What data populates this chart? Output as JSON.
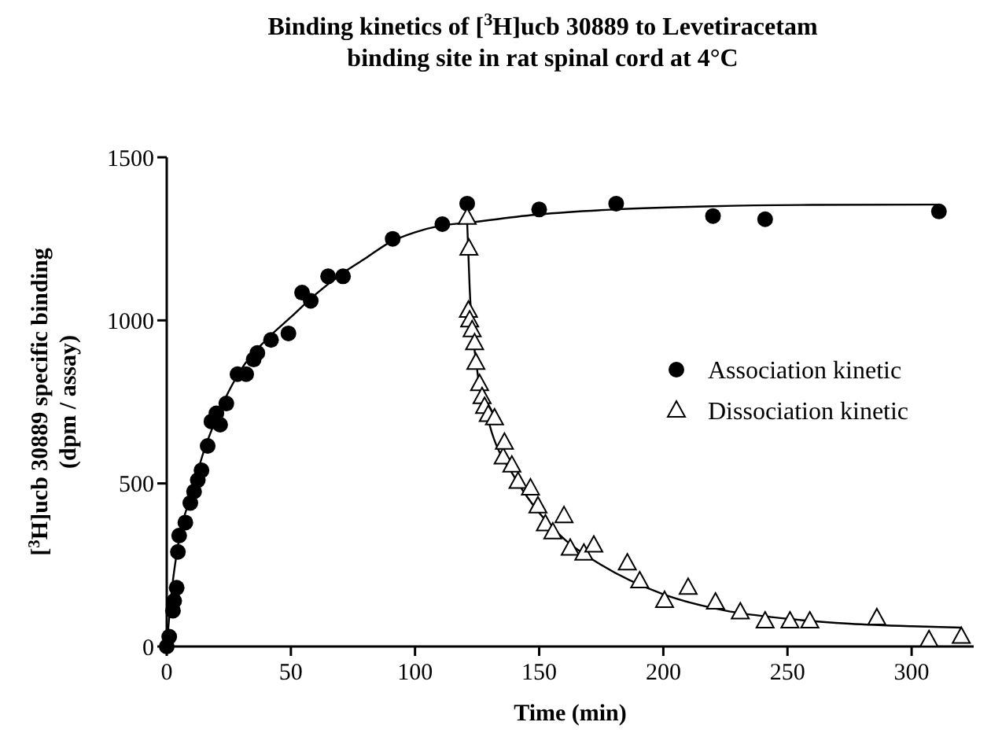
{
  "chart_data": {
    "type": "scatter",
    "title": "Binding kinetics of [$^{3}$H]ucb 30889 to Levetiracetam binding site in rat spinal cord at 4°C",
    "xlabel": "Time (min)",
    "ylabel": "[$^{3}$H]ucb 30889 specific binding (dpm / assay)",
    "xlim": [
      0,
      325
    ],
    "xticks": [
      0,
      50,
      100,
      150,
      200,
      250,
      300
    ],
    "ylim": [
      0,
      1500
    ],
    "yticks": [
      0,
      500,
      1000,
      1500
    ],
    "grid": false,
    "legend": "right",
    "line_style": "solid",
    "series": [
      {
        "name": "Association kinetic",
        "color": "#000000",
        "marker": "circle",
        "x": [
          0,
          1,
          2.5,
          3,
          4,
          4.5,
          5,
          7.5,
          9.5,
          11,
          12.5,
          14,
          16.5,
          18,
          20,
          21.5,
          24,
          28.5,
          32,
          35,
          36.5,
          42,
          49,
          54.5,
          58,
          65,
          71,
          91,
          111,
          121,
          150,
          181,
          220,
          241,
          311
        ],
        "values": [
          0,
          30,
          110,
          140,
          180,
          290,
          340,
          380,
          440,
          475,
          510,
          540,
          615,
          690,
          715,
          680,
          745,
          835,
          835,
          880,
          900,
          940,
          960,
          1085,
          1060,
          1135,
          1135,
          1250,
          1295,
          1358,
          1340,
          1358,
          1320,
          1310,
          1334
        ]
      },
      {
        "name": "Dissociation kinetic",
        "color": "#000000",
        "marker": "triangle",
        "x": [
          121,
          121.7,
          121.5,
          122,
          123,
          124,
          124.5,
          126,
          127,
          128,
          129.5,
          132,
          135.5,
          136,
          139,
          141.5,
          146.5,
          149.5,
          152.5,
          155.5,
          160,
          162.5,
          168,
          172,
          185.5,
          190.5,
          200.5,
          210,
          221,
          231,
          241,
          251,
          259,
          286,
          307,
          320
        ],
        "values": [
          1315,
          1220,
          1030,
          1000,
          970,
          930,
          870,
          805,
          765,
          735,
          710,
          700,
          580,
          625,
          555,
          505,
          485,
          430,
          375,
          350,
          400,
          300,
          285,
          310,
          255,
          200,
          140,
          180,
          135,
          105,
          77,
          77,
          77,
          87,
          20,
          30
        ]
      },
      {
        "type": "line",
        "color": "#000000",
        "marker": "none",
        "x": [
          0,
          2,
          5,
          10,
          15,
          20,
          30,
          40,
          50,
          60,
          70,
          80,
          90,
          100,
          110,
          122,
          150,
          180,
          220,
          260,
          311
        ],
        "values": [
          0,
          170,
          330,
          470,
          600,
          700,
          850,
          940,
          1010,
          1080,
          1140,
          1190,
          1240,
          1270,
          1290,
          1300,
          1325,
          1340,
          1350,
          1354,
          1355
        ]
      },
      {
        "type": "line",
        "color": "#000000",
        "marker": "none",
        "x": [
          121,
          122,
          125,
          130,
          140,
          150,
          160,
          175,
          200,
          225,
          250,
          275,
          300,
          320
        ],
        "values": [
          1300,
          1100,
          850,
          680,
          520,
          410,
          330,
          250,
          160,
          110,
          85,
          70,
          62,
          58
        ]
      }
    ]
  }
}
